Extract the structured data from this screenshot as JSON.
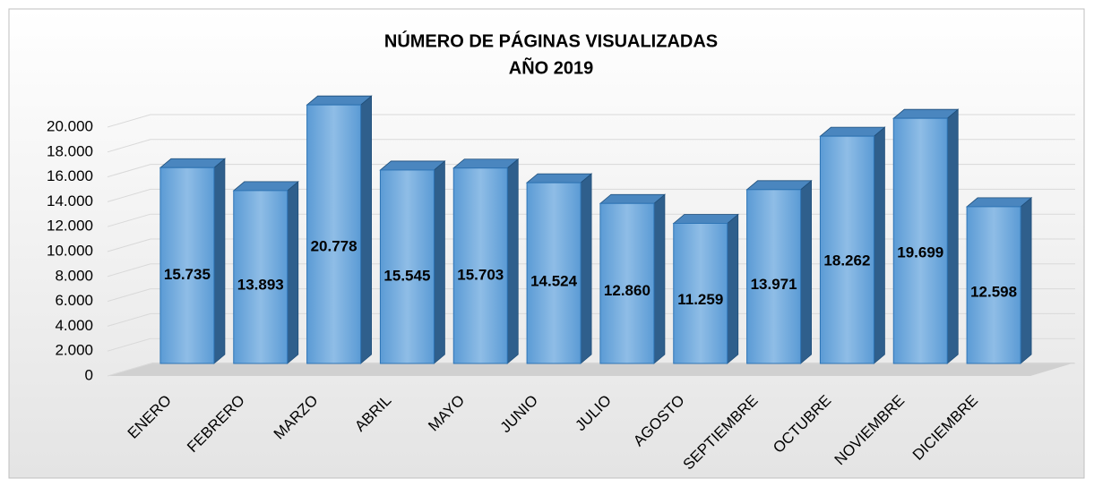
{
  "chart_data": {
    "type": "bar",
    "title": "NÚMERO DE PÁGINAS VISUALIZADAS",
    "subtitle": "AÑO 2019",
    "categories": [
      "ENERO",
      "FEBRERO",
      "MARZO",
      "ABRIL",
      "MAYO",
      "JUNIO",
      "JULIO",
      "AGOSTO",
      "SEPTIEMBRE",
      "OCTUBRE",
      "NOVIEMBRE",
      "DICIEMBRE"
    ],
    "values": [
      15735,
      13893,
      20778,
      15545,
      15703,
      14524,
      12860,
      11259,
      13971,
      18262,
      19699,
      12598
    ],
    "value_labels": [
      "15.735",
      "13.893",
      "20.778",
      "15.545",
      "15.703",
      "14.524",
      "12.860",
      "11.259",
      "13.971",
      "18.262",
      "19.699",
      "12.598"
    ],
    "color": "#5b9bd5",
    "ylim": [
      0,
      20000
    ],
    "yticks": [
      0,
      {
        "value": 2000,
        "label": "2.000"
      },
      {
        "value": 4000,
        "label": "4.000"
      },
      {
        "value": 6000,
        "label": "6.000"
      },
      {
        "value": 8000,
        "label": "8.000"
      },
      {
        "value": 10000,
        "label": "10.000"
      },
      {
        "value": 12000,
        "label": "12.000"
      },
      {
        "value": 14000,
        "label": "14.000"
      },
      {
        "value": 16000,
        "label": "16.000"
      },
      {
        "value": 18000,
        "label": "18.000"
      },
      {
        "value": 20000,
        "label": "20.000"
      }
    ],
    "grid": true
  }
}
